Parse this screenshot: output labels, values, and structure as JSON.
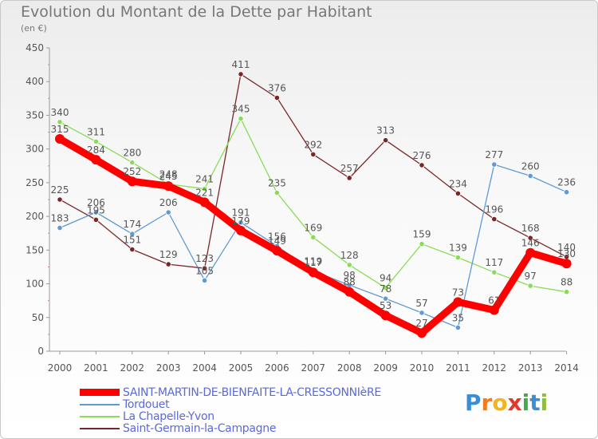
{
  "chart_data": {
    "type": "line",
    "title": "Evolution du Montant de la Dette par Habitant",
    "subtitle": "(en €)",
    "x": [
      "2000",
      "2001",
      "2002",
      "2003",
      "2004",
      "2005",
      "2006",
      "2007",
      "2008",
      "2009",
      "2010",
      "2011",
      "2012",
      "2013",
      "2014"
    ],
    "ylim": [
      0,
      450
    ],
    "yticks": [
      "0",
      "50",
      "100",
      "150",
      "200",
      "250",
      "300",
      "350",
      "400",
      "450"
    ],
    "grid": false,
    "legend_position": "bottom-left",
    "series": [
      {
        "name": "SAINT-MARTIN-DE-BIENFAITE-LA-CRESSONNIèRE",
        "color": "#ff0000",
        "emphasis": true,
        "values": [
          315,
          284,
          252,
          245,
          221,
          179,
          149,
          117,
          88,
          53,
          27,
          73,
          61,
          146,
          130
        ],
        "labels": [
          "315",
          "284",
          "252",
          "245",
          "221",
          "179",
          "149",
          "117",
          "88",
          "53",
          "27",
          "73",
          "61",
          "146",
          "130"
        ]
      },
      {
        "name": "Tordouet",
        "color": "#5f9ad3",
        "values": [
          183,
          206,
          174,
          206,
          105,
          191,
          156,
          119,
          98,
          78,
          57,
          35,
          277,
          260,
          236
        ],
        "labels": [
          "183",
          "206",
          "174",
          "206",
          "105",
          "191",
          "156",
          "119",
          "98",
          "78",
          "57",
          "35",
          "277",
          "260",
          "236"
        ]
      },
      {
        "name": "La Chapelle-Yvon",
        "color": "#88dd55",
        "values": [
          340,
          311,
          280,
          248,
          241,
          345,
          235,
          169,
          128,
          94,
          159,
          139,
          117,
          97,
          88
        ],
        "labels": [
          "340",
          "311",
          "280",
          "248",
          "241",
          "345",
          "235",
          "169",
          "128",
          "94",
          "159",
          "139",
          "117",
          "97",
          "88"
        ]
      },
      {
        "name": "Saint-Germain-la-Campagne",
        "color": "#7a2628",
        "values": [
          225,
          195,
          151,
          129,
          123,
          411,
          376,
          292,
          257,
          313,
          276,
          234,
          196,
          168,
          140
        ],
        "labels": [
          "225",
          "195",
          "151",
          "129",
          "123",
          "411",
          "376",
          "292",
          "257",
          "313",
          "276",
          "234",
          "196",
          "168",
          "140"
        ]
      }
    ]
  },
  "logo": {
    "letters": [
      "P",
      "r",
      "o",
      "x",
      "i",
      "t",
      "i"
    ],
    "colors": [
      "#3a8ed6",
      "#f07c1c",
      "#f2b51d",
      "#e2382a",
      "#3fae49",
      "#3a8ed6",
      "#8cbf3a"
    ]
  }
}
